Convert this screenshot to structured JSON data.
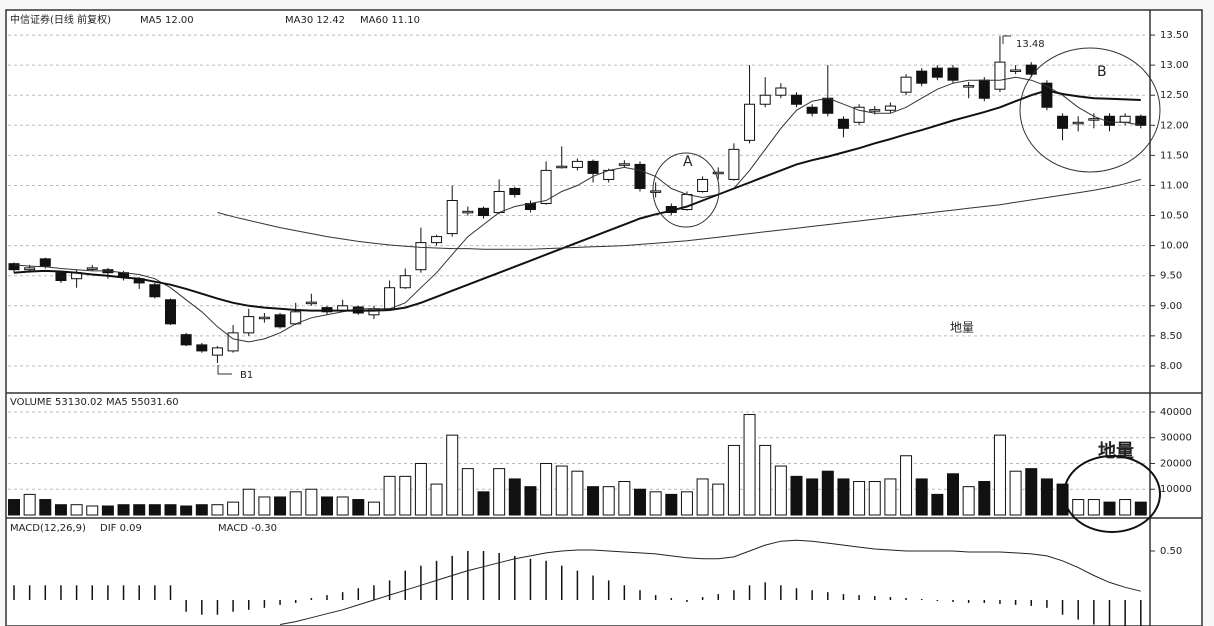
{
  "chart_data": [
    {
      "type": "candlestick",
      "title": "中信证券(日线 前复权)",
      "open": [
        9.7,
        9.6,
        9.78,
        9.55,
        9.45,
        9.61,
        9.6,
        9.55,
        9.45,
        9.35,
        9.1,
        8.52,
        8.35,
        8.18,
        8.25,
        8.55,
        8.8,
        8.85,
        8.7,
        9.05,
        8.97,
        8.92,
        8.98,
        8.85,
        8.95,
        9.3,
        9.6,
        10.05,
        10.2,
        10.55,
        10.62,
        10.55,
        10.95,
        10.7,
        10.7,
        11.3,
        11.3,
        11.4,
        11.1,
        11.35,
        11.35,
        10.9,
        10.65,
        10.6,
        10.9,
        11.2,
        11.1,
        11.75,
        12.35,
        12.5,
        12.5,
        12.3,
        12.45,
        12.1,
        12.05,
        12.25,
        12.25,
        12.55,
        12.9,
        12.95,
        12.95,
        12.65,
        12.75,
        12.6,
        12.9,
        13.0,
        12.7,
        12.15,
        12.04,
        12.1,
        12.15,
        12.05,
        12.15
      ],
      "high": [
        9.72,
        9.68,
        9.8,
        9.58,
        9.6,
        9.68,
        9.63,
        9.58,
        9.48,
        9.38,
        9.12,
        8.55,
        8.38,
        8.33,
        8.68,
        8.95,
        8.88,
        8.88,
        9.05,
        9.2,
        9.0,
        9.1,
        9.0,
        9.0,
        9.42,
        9.62,
        10.3,
        10.18,
        11.0,
        10.65,
        10.65,
        11.1,
        10.98,
        10.75,
        11.4,
        11.65,
        11.45,
        11.43,
        11.28,
        11.42,
        11.4,
        11.05,
        10.7,
        10.9,
        11.15,
        11.3,
        11.7,
        13.0,
        12.8,
        12.7,
        12.55,
        12.35,
        13.0,
        12.15,
        12.35,
        12.32,
        12.38,
        12.85,
        12.95,
        13.0,
        13.0,
        12.72,
        12.8,
        13.48,
        13.0,
        13.05,
        12.75,
        12.2,
        12.15,
        12.2,
        12.2,
        12.2,
        12.18
      ],
      "low": [
        9.55,
        9.55,
        9.62,
        9.38,
        9.3,
        9.58,
        9.45,
        9.42,
        9.28,
        9.12,
        8.68,
        8.33,
        8.22,
        8.05,
        8.22,
        8.5,
        8.72,
        8.62,
        8.68,
        9.0,
        8.85,
        8.9,
        8.85,
        8.78,
        8.92,
        9.28,
        9.55,
        10.0,
        10.15,
        10.5,
        10.45,
        10.52,
        10.8,
        10.55,
        10.68,
        11.28,
        11.25,
        11.05,
        11.05,
        11.3,
        10.9,
        10.8,
        10.5,
        10.58,
        10.88,
        11.1,
        11.08,
        11.7,
        12.3,
        12.45,
        12.3,
        12.15,
        12.15,
        11.8,
        12.0,
        12.18,
        12.2,
        12.5,
        12.65,
        12.75,
        12.7,
        12.45,
        12.4,
        12.55,
        12.85,
        12.8,
        12.25,
        11.75,
        11.9,
        11.95,
        11.9,
        12.0,
        11.95
      ],
      "close": [
        9.6,
        9.63,
        9.66,
        9.42,
        9.55,
        9.63,
        9.55,
        9.47,
        9.38,
        9.15,
        8.7,
        8.35,
        8.25,
        8.3,
        8.55,
        8.82,
        8.81,
        8.65,
        8.9,
        9.06,
        8.9,
        9.0,
        8.88,
        8.95,
        9.3,
        9.5,
        10.05,
        10.15,
        10.75,
        10.57,
        10.5,
        10.9,
        10.85,
        10.6,
        11.25,
        11.32,
        11.4,
        11.2,
        11.25,
        11.36,
        10.95,
        10.91,
        10.55,
        10.85,
        11.1,
        11.22,
        11.6,
        12.35,
        12.5,
        12.62,
        12.35,
        12.2,
        12.2,
        11.95,
        12.3,
        12.26,
        12.32,
        12.8,
        12.7,
        12.8,
        12.75,
        12.66,
        12.45,
        13.05,
        12.92,
        12.85,
        12.3,
        11.95,
        12.05,
        12.11,
        12.0,
        12.15,
        12.0
      ],
      "series": [
        {
          "name": "MA5 12.00",
          "color": "#333333",
          "values": [
            9.68,
            9.66,
            9.65,
            9.62,
            9.6,
            9.58,
            9.58,
            9.55,
            9.52,
            9.45,
            9.3,
            9.1,
            8.9,
            8.65,
            8.45,
            8.4,
            8.45,
            8.55,
            8.7,
            8.8,
            8.85,
            8.9,
            8.95,
            8.95,
            8.95,
            9.05,
            9.3,
            9.55,
            9.85,
            10.15,
            10.35,
            10.55,
            10.65,
            10.7,
            10.75,
            10.9,
            11.0,
            11.15,
            11.25,
            11.3,
            11.25,
            11.15,
            10.95,
            10.85,
            10.8,
            10.85,
            10.95,
            11.25,
            11.6,
            11.95,
            12.25,
            12.4,
            12.45,
            12.35,
            12.25,
            12.2,
            12.2,
            12.3,
            12.45,
            12.6,
            12.7,
            12.75,
            12.75,
            12.75,
            12.8,
            12.75,
            12.65,
            12.5,
            12.3,
            12.15,
            12.05,
            12.05,
            12.0
          ]
        },
        {
          "name": "MA30 12.42",
          "color": "#111111",
          "values": [
            9.55,
            9.57,
            9.58,
            9.57,
            9.55,
            9.52,
            9.5,
            9.47,
            9.45,
            9.4,
            9.35,
            9.28,
            9.2,
            9.12,
            9.05,
            9.0,
            8.97,
            8.95,
            8.93,
            8.92,
            8.92,
            8.92,
            8.92,
            8.92,
            8.93,
            8.97,
            9.05,
            9.15,
            9.25,
            9.35,
            9.45,
            9.55,
            9.65,
            9.75,
            9.85,
            9.95,
            10.05,
            10.15,
            10.25,
            10.35,
            10.45,
            10.52,
            10.58,
            10.65,
            10.75,
            10.85,
            10.95,
            11.05,
            11.15,
            11.25,
            11.35,
            11.42,
            11.48,
            11.55,
            11.62,
            11.7,
            11.77,
            11.85,
            11.92,
            12.0,
            12.08,
            12.15,
            12.22,
            12.3,
            12.4,
            12.5,
            12.58,
            12.52,
            12.48,
            12.45,
            12.44,
            12.43,
            12.42
          ]
        },
        {
          "name": "MA60 11.10",
          "color": "#333333",
          "values": [
            null,
            null,
            null,
            null,
            null,
            null,
            null,
            null,
            null,
            null,
            null,
            null,
            null,
            10.55,
            10.48,
            10.42,
            10.36,
            10.3,
            10.25,
            10.2,
            10.15,
            10.11,
            10.07,
            10.04,
            10.01,
            9.99,
            9.97,
            9.96,
            9.95,
            9.95,
            9.94,
            9.94,
            9.94,
            9.94,
            9.95,
            9.96,
            9.97,
            9.98,
            9.99,
            10.0,
            10.02,
            10.04,
            10.06,
            10.08,
            10.11,
            10.14,
            10.17,
            10.2,
            10.23,
            10.26,
            10.29,
            10.32,
            10.35,
            10.38,
            10.41,
            10.44,
            10.47,
            10.5,
            10.53,
            10.56,
            10.59,
            10.62,
            10.65,
            10.68,
            10.72,
            10.76,
            10.8,
            10.84,
            10.88,
            10.92,
            10.97,
            11.03,
            11.1
          ]
        }
      ],
      "ylim": [
        7.6,
        13.9
      ],
      "yticks": [
        {
          "value": 8,
          "label": "8.00"
        },
        {
          "value": 8.5,
          "label": "8.50"
        },
        {
          "value": 9,
          "label": "9.00"
        },
        {
          "value": 9.5,
          "label": "9.50"
        },
        {
          "value": 10,
          "label": "10.00"
        },
        {
          "value": 10.5,
          "label": "10.50"
        },
        {
          "value": 11,
          "label": "11.00"
        },
        {
          "value": 11.5,
          "label": "11.50"
        },
        {
          "value": 12,
          "label": "12.00"
        },
        {
          "value": 12.5,
          "label": "12.50"
        },
        {
          "value": 13,
          "label": "13.00"
        },
        {
          "value": 13.5,
          "label": "13.50"
        }
      ],
      "grid": true,
      "annotations": [
        "A",
        "B",
        "B1",
        "13.48",
        "地量"
      ]
    },
    {
      "type": "bar",
      "title": "VOLUME 53130.02  MA5 55031.60",
      "values": [
        6000,
        8000,
        6000,
        4000,
        4000,
        3500,
        3500,
        4000,
        4000,
        4000,
        4000,
        3500,
        4000,
        4000,
        5000,
        10000,
        7000,
        7000,
        9000,
        10000,
        7000,
        7000,
        6000,
        5000,
        15000,
        15000,
        20000,
        12000,
        31000,
        18000,
        9000,
        18000,
        14000,
        11000,
        20000,
        19000,
        17000,
        11000,
        11000,
        13000,
        10000,
        9000,
        8000,
        9000,
        14000,
        12000,
        27000,
        39000,
        27000,
        19000,
        15000,
        14000,
        17000,
        14000,
        13000,
        13000,
        14000,
        23000,
        14000,
        8000,
        16000,
        11000,
        13000,
        31000,
        17000,
        18000,
        14000,
        12000,
        6000,
        6000,
        5000,
        6000,
        5000
      ],
      "ylim": [
        0,
        46000
      ],
      "yticks": [
        10000,
        20000,
        30000,
        40000
      ],
      "grid": true,
      "annotations": [
        "地量"
      ]
    },
    {
      "type": "macd",
      "title": "MACD(12,26,9)",
      "subtitle": "MACD -0.30",
      "values": [
        0.15,
        0.15,
        0.15,
        0.15,
        0.15,
        0.15,
        0.15,
        0.15,
        0.15,
        0.15,
        0.15,
        -0.12,
        -0.15,
        -0.15,
        -0.12,
        -0.1,
        -0.08,
        -0.05,
        -0.03,
        0.02,
        0.05,
        0.08,
        0.12,
        0.15,
        0.2,
        0.3,
        0.35,
        0.4,
        0.45,
        0.5,
        0.5,
        0.48,
        0.45,
        0.42,
        0.4,
        0.35,
        0.3,
        0.25,
        0.2,
        0.15,
        0.1,
        0.05,
        0.02,
        -0.02,
        0.03,
        0.06,
        0.1,
        0.15,
        0.18,
        0.15,
        0.12,
        0.1,
        0.08,
        0.06,
        0.05,
        0.04,
        0.03,
        0.02,
        0.01,
        -0.01,
        -0.02,
        -0.03,
        -0.03,
        -0.04,
        -0.05,
        -0.06,
        -0.08,
        -0.15,
        -0.2,
        -0.25,
        -0.28,
        -0.3,
        -0.3
      ],
      "series": [
        {
          "name": "DIF 0.09",
          "color": "#222222",
          "values": [
            null,
            null,
            null,
            null,
            null,
            null,
            null,
            null,
            null,
            null,
            null,
            null,
            null,
            null,
            null,
            null,
            null,
            -0.25,
            -0.22,
            -0.18,
            -0.14,
            -0.1,
            -0.05,
            0.0,
            0.05,
            0.1,
            0.15,
            0.2,
            0.25,
            0.3,
            0.34,
            0.38,
            0.42,
            0.45,
            0.48,
            0.5,
            0.51,
            0.51,
            0.5,
            0.49,
            0.48,
            0.47,
            0.45,
            0.43,
            0.42,
            0.42,
            0.44,
            0.5,
            0.56,
            0.6,
            0.61,
            0.6,
            0.58,
            0.56,
            0.54,
            0.52,
            0.51,
            0.5,
            0.5,
            0.5,
            0.5,
            0.49,
            0.49,
            0.49,
            0.48,
            0.47,
            0.45,
            0.4,
            0.33,
            0.25,
            0.18,
            0.13,
            0.09
          ]
        }
      ],
      "ylim": [
        -0.26,
        0.82
      ],
      "yticks": [
        {
          "value": 0.5,
          "label": "0.50"
        }
      ]
    }
  ]
}
